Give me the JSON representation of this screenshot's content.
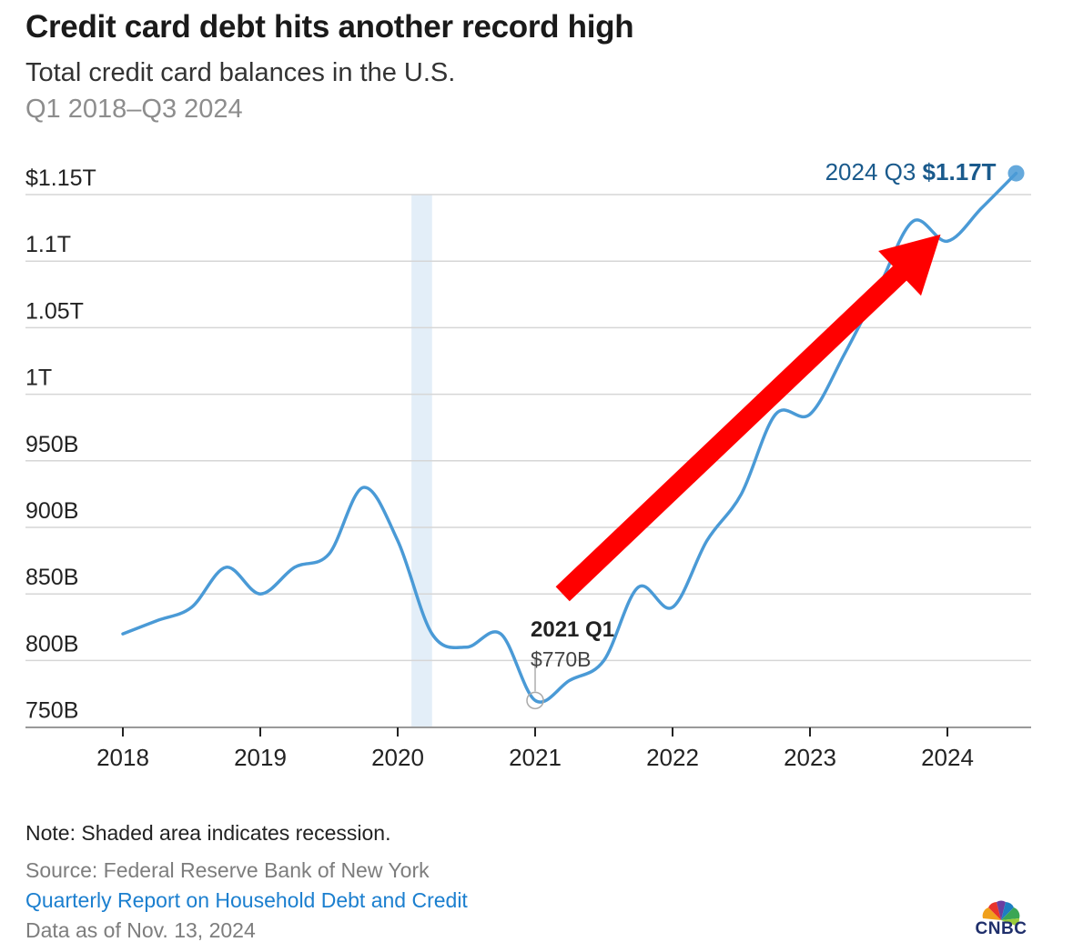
{
  "title": "Credit card debt hits another record high",
  "subtitle": "Total credit card balances in the U.S.",
  "range": "Q1 2018–Q3 2024",
  "footer": {
    "note": "Note: Shaded area indicates recession.",
    "source": "Source: Federal Reserve Bank of New York",
    "report_link": "Quarterly Report on Household Debt and Credit",
    "as_of": "Data as of Nov. 13, 2024",
    "logo_text": "CNBC"
  },
  "colors": {
    "line": "#4a9ad6",
    "recession": "#e3eef8",
    "arrow": "#ff0000",
    "grid": "#d6d6d6",
    "link": "#1b7fcf",
    "end_label": "#1a5a8c"
  },
  "chart_data": {
    "type": "line",
    "title": "Credit card debt hits another record high",
    "subtitle": "Total credit card balances in the U.S.",
    "ylim": [
      740,
      1150
    ],
    "y_ticks": [
      {
        "value": 750,
        "label": "750B"
      },
      {
        "value": 800,
        "label": "800B"
      },
      {
        "value": 850,
        "label": "850B"
      },
      {
        "value": 900,
        "label": "900B"
      },
      {
        "value": 950,
        "label": "950B"
      },
      {
        "value": 1000,
        "label": "1T"
      },
      {
        "value": 1050,
        "label": "1.05T"
      },
      {
        "value": 1100,
        "label": "1.1T"
      },
      {
        "value": 1150,
        "label": "$1.15T"
      }
    ],
    "x_ticks": [
      2018,
      2019,
      2020,
      2021,
      2022,
      2023,
      2024
    ],
    "recession": [
      2020.1,
      2020.25
    ],
    "series": [
      {
        "x": [
          2018.0,
          2018.25,
          2018.5,
          2018.75,
          2019.0,
          2019.25,
          2019.5,
          2019.75,
          2020.0,
          2020.25,
          2020.5,
          2020.75,
          2021.0,
          2021.25,
          2021.5,
          2021.75,
          2022.0,
          2022.25,
          2022.5,
          2022.75,
          2023.0,
          2023.25,
          2023.5,
          2023.75,
          2024.0,
          2024.25,
          2024.5
        ],
        "values": [
          820,
          830,
          840,
          870,
          850,
          870,
          880,
          930,
          890,
          820,
          810,
          820,
          770,
          785,
          800,
          855,
          840,
          890,
          925,
          985,
          985,
          1030,
          1080,
          1130,
          1115,
          1140,
          1166
        ]
      }
    ],
    "annotations": [
      {
        "x": 2021.0,
        "y": 770,
        "label": "2021 Q1",
        "value_label": "$770B"
      },
      {
        "x": 2024.5,
        "y": 1166,
        "label": "2024 Q3",
        "value_label": "$1.17T"
      }
    ],
    "arrow": {
      "from": {
        "x": 2021.2,
        "y": 850
      },
      "to": {
        "x": 2023.95,
        "y": 1120
      }
    }
  }
}
